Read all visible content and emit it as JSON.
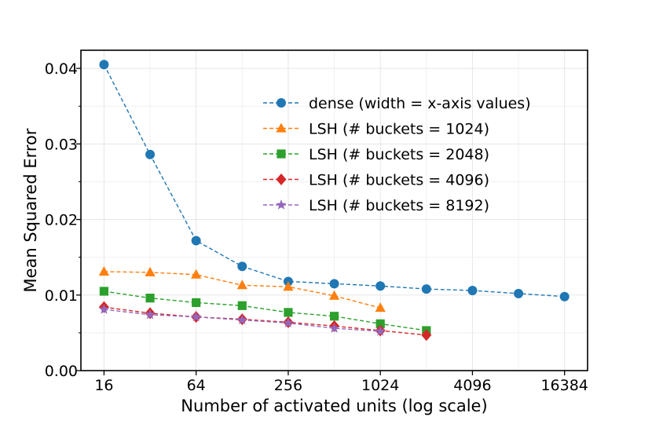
{
  "chart_data": {
    "type": "line",
    "title": "",
    "xlabel": "Number of activated units (log scale)",
    "ylabel": "Mean Squared Error",
    "x_scale": "log2",
    "xlim": [
      11.3,
      23170
    ],
    "ylim": [
      0.0,
      0.0424
    ],
    "x_ticks": [
      16,
      64,
      256,
      1024,
      4096,
      16384
    ],
    "x_tick_labels": [
      "16",
      "64",
      "256",
      "1024",
      "4096",
      "16384"
    ],
    "y_ticks": [
      0.0,
      0.01,
      0.02,
      0.03,
      0.04
    ],
    "y_tick_labels": [
      "0.00",
      "0.01",
      "0.02",
      "0.03",
      "0.04"
    ],
    "grid": true,
    "legend_position": "upper-right",
    "series": [
      {
        "name": "dense (width = x-axis values)",
        "color": "#1f77b4",
        "marker": "circle",
        "x": [
          16,
          32,
          64,
          128,
          256,
          512,
          1024,
          2048,
          4096,
          8192,
          16384
        ],
        "y": [
          0.0405,
          0.0286,
          0.0172,
          0.0138,
          0.0118,
          0.0115,
          0.0112,
          0.0108,
          0.0106,
          0.0102,
          0.0098
        ]
      },
      {
        "name": "LSH (# buckets = 1024)",
        "color": "#ff7f0e",
        "marker": "triangle",
        "x": [
          16,
          32,
          64,
          128,
          256,
          512,
          1024
        ],
        "y": [
          0.0131,
          0.013,
          0.0127,
          0.0113,
          0.0111,
          0.0099,
          0.0083
        ]
      },
      {
        "name": "LSH (# buckets = 2048)",
        "color": "#2ca02c",
        "marker": "square",
        "x": [
          16,
          32,
          64,
          128,
          256,
          512,
          1024,
          2048
        ],
        "y": [
          0.0105,
          0.0096,
          0.009,
          0.0086,
          0.0077,
          0.0072,
          0.0062,
          0.0053
        ]
      },
      {
        "name": "LSH (# buckets = 4096)",
        "color": "#d62728",
        "marker": "diamond",
        "x": [
          16,
          32,
          64,
          128,
          256,
          512,
          1024,
          2048
        ],
        "y": [
          0.0084,
          0.0076,
          0.0071,
          0.0068,
          0.0064,
          0.0059,
          0.0053,
          0.0047
        ]
      },
      {
        "name": "LSH (# buckets = 8192)",
        "color": "#9467bd",
        "marker": "star",
        "x": [
          16,
          32,
          64,
          128,
          256,
          512,
          1024
        ],
        "y": [
          0.0081,
          0.0074,
          0.0071,
          0.0067,
          0.0063,
          0.0056,
          0.0052
        ]
      }
    ]
  }
}
